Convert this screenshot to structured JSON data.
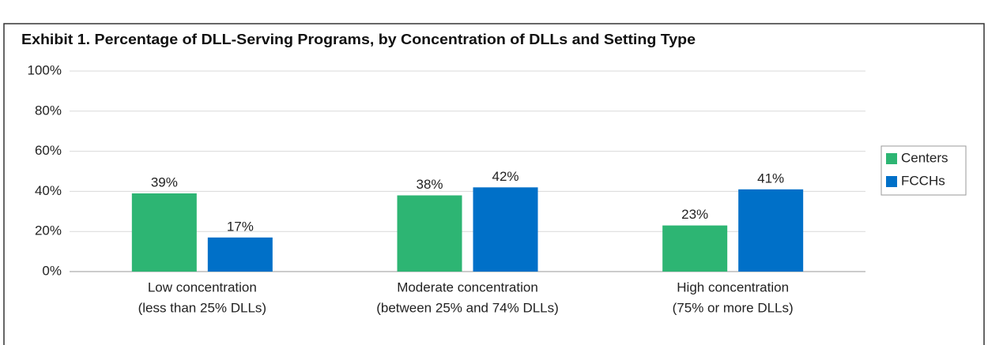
{
  "chart_data": {
    "type": "bar",
    "title": "Exhibit 1. Percentage of DLL-Serving Programs, by Concentration of DLLs and Setting Type",
    "categories": [
      [
        "Low concentration",
        "(less than 25% DLLs)"
      ],
      [
        "Moderate concentration",
        "(between 25% and 74% DLLs)"
      ],
      [
        "High concentration",
        "(75% or more DLLs)"
      ]
    ],
    "series": [
      {
        "name": "Centers",
        "color": "#2db573",
        "values": [
          39,
          38,
          23
        ],
        "value_labels": [
          "39%",
          "38%",
          "23%"
        ]
      },
      {
        "name": "FCCHs",
        "color": "#0070c8",
        "values": [
          17,
          42,
          41
        ],
        "value_labels": [
          "17%",
          "42%",
          "41%"
        ]
      }
    ],
    "ylim": [
      0,
      100
    ],
    "yticks": [
      {
        "value": 0,
        "label": "0%"
      },
      {
        "value": 20,
        "label": "20%"
      },
      {
        "value": 40,
        "label": "40%"
      },
      {
        "value": 60,
        "label": "60%"
      },
      {
        "value": 80,
        "label": "80%"
      },
      {
        "value": 100,
        "label": "100%"
      }
    ],
    "grid": true,
    "legend": "right"
  }
}
